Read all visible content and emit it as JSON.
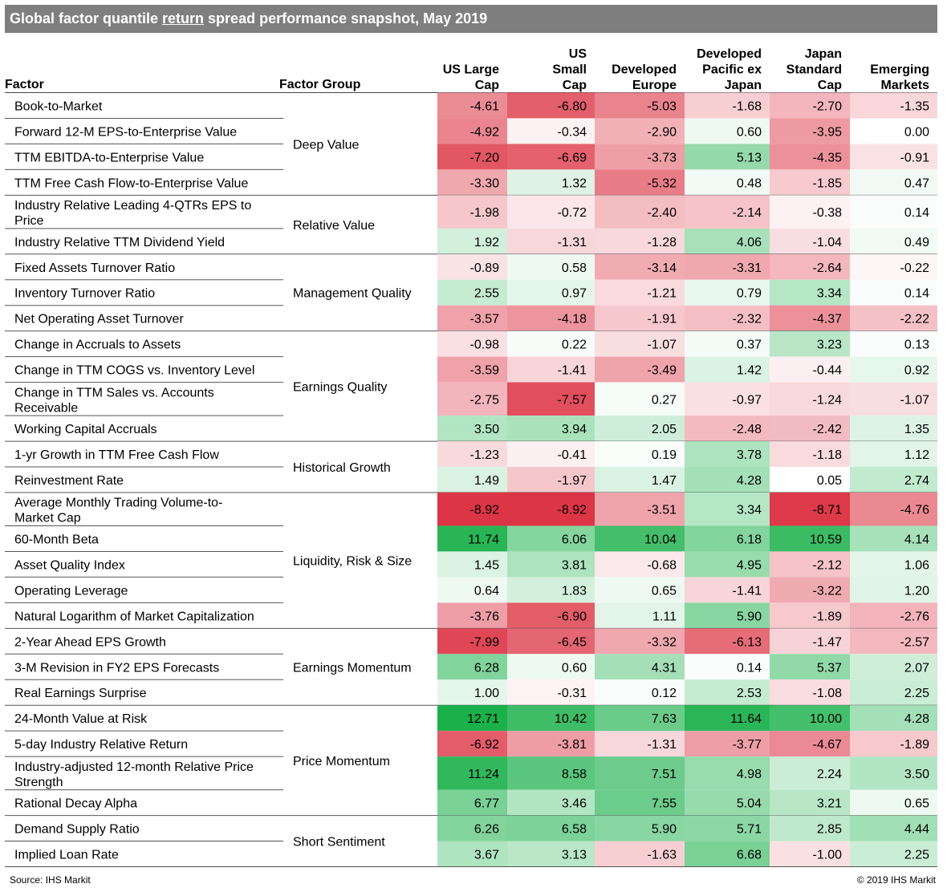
{
  "title": {
    "pre": "Global factor quantile ",
    "underlined": "return",
    "post": " spread performance snapshot, May 2019"
  },
  "source": "Source: IHS Markit",
  "copyright": "© 2019 IHS Markit",
  "colors": {
    "title_bg": "#7f7f7f",
    "negative_max": "#dc3545",
    "positive_max": "#1ab04a",
    "neutral": "#ffffff"
  },
  "chart_data": {
    "type": "heatmap",
    "title": "Global factor quantile return spread performance snapshot, May 2019",
    "header": {
      "factor": "Factor",
      "group": "Factor Group"
    },
    "columns": [
      {
        "lines": [
          "US Large",
          "Cap"
        ]
      },
      {
        "lines": [
          "US",
          "Small",
          "Cap"
        ]
      },
      {
        "lines": [
          "Developed",
          "Europe"
        ]
      },
      {
        "lines": [
          "Developed",
          "Pacific ex",
          "Japan"
        ]
      },
      {
        "lines": [
          "Japan",
          "Standard",
          "Cap"
        ]
      },
      {
        "lines": [
          "Emerging",
          "Markets"
        ]
      }
    ],
    "groups": [
      {
        "name": "Deep Value",
        "rows": [
          {
            "factor": [
              "Book-to-Market"
            ],
            "values": [
              -4.61,
              -6.8,
              -5.03,
              -1.68,
              -2.7,
              -1.35
            ]
          },
          {
            "factor": [
              "Forward 12-M EPS-to-Enterprise Value"
            ],
            "values": [
              -4.92,
              -0.34,
              -2.9,
              0.6,
              -3.95,
              0.0
            ]
          },
          {
            "factor": [
              "TTM EBITDA-to-Enterprise Value"
            ],
            "values": [
              -7.2,
              -6.69,
              -3.73,
              5.13,
              -4.35,
              -0.91
            ]
          },
          {
            "factor": [
              "TTM Free Cash Flow-to-Enterprise Value"
            ],
            "values": [
              -3.3,
              1.32,
              -5.32,
              0.48,
              -1.85,
              0.47
            ]
          }
        ]
      },
      {
        "name": "Relative Value",
        "rows": [
          {
            "factor": [
              "Industry Relative Leading 4-QTRs EPS to",
              "Price"
            ],
            "values": [
              -1.98,
              -0.72,
              -2.4,
              -2.14,
              -0.38,
              0.14
            ]
          },
          {
            "factor": [
              "Industry Relative TTM Dividend Yield"
            ],
            "values": [
              1.92,
              -1.31,
              -1.28,
              4.06,
              -1.04,
              0.49
            ]
          }
        ]
      },
      {
        "name": "Management Quality",
        "rows": [
          {
            "factor": [
              "Fixed Assets Turnover Ratio"
            ],
            "values": [
              -0.89,
              0.58,
              -3.14,
              -3.31,
              -2.64,
              -0.22
            ]
          },
          {
            "factor": [
              "Inventory Turnover Ratio"
            ],
            "values": [
              2.55,
              0.97,
              -1.21,
              0.79,
              3.34,
              0.14
            ]
          },
          {
            "factor": [
              "Net Operating Asset Turnover"
            ],
            "values": [
              -3.57,
              -4.18,
              -1.91,
              -2.32,
              -4.37,
              -2.22
            ]
          }
        ]
      },
      {
        "name": "Earnings Quality",
        "rows": [
          {
            "factor": [
              "Change in Accruals to Assets"
            ],
            "values": [
              -0.98,
              0.22,
              -1.07,
              0.37,
              3.23,
              0.13
            ]
          },
          {
            "factor": [
              "Change in TTM COGS vs. Inventory Level"
            ],
            "values": [
              -3.59,
              -1.41,
              -3.49,
              1.42,
              -0.44,
              0.92
            ]
          },
          {
            "factor": [
              "Change in TTM Sales vs. Accounts",
              "Receivable"
            ],
            "values": [
              -2.75,
              -7.57,
              0.27,
              -0.97,
              -1.24,
              -1.07
            ]
          },
          {
            "factor": [
              "Working Capital Accruals"
            ],
            "values": [
              3.5,
              3.94,
              2.05,
              -2.48,
              -2.42,
              1.35
            ]
          }
        ]
      },
      {
        "name": "Historical Growth",
        "rows": [
          {
            "factor": [
              "1-yr Growth in TTM Free Cash Flow"
            ],
            "values": [
              -1.23,
              -0.41,
              0.19,
              3.78,
              -1.18,
              1.12
            ]
          },
          {
            "factor": [
              "Reinvestment Rate"
            ],
            "values": [
              1.49,
              -1.97,
              1.47,
              4.28,
              0.05,
              2.74
            ]
          }
        ]
      },
      {
        "name": "Liquidity, Risk & Size",
        "rows": [
          {
            "factor": [
              "Average Monthly Trading Volume-to-",
              "Market Cap"
            ],
            "values": [
              -8.92,
              -8.92,
              -3.51,
              3.34,
              -8.71,
              -4.76
            ]
          },
          {
            "factor": [
              "60-Month Beta"
            ],
            "values": [
              11.74,
              6.06,
              10.04,
              6.18,
              10.59,
              4.14
            ]
          },
          {
            "factor": [
              "Asset Quality Index"
            ],
            "values": [
              1.45,
              3.81,
              -0.68,
              4.95,
              -2.12,
              1.06
            ]
          },
          {
            "factor": [
              "Operating Leverage"
            ],
            "values": [
              0.64,
              1.83,
              0.65,
              -1.41,
              -3.22,
              1.2
            ]
          },
          {
            "factor": [
              "Natural Logarithm of Market Capitalization"
            ],
            "values": [
              -3.76,
              -6.9,
              1.11,
              5.9,
              -1.89,
              -2.76
            ]
          }
        ]
      },
      {
        "name": "Earnings Momentum",
        "rows": [
          {
            "factor": [
              "2-Year Ahead EPS Growth"
            ],
            "values": [
              -7.99,
              -6.45,
              -3.32,
              -6.13,
              -1.47,
              -2.57
            ]
          },
          {
            "factor": [
              "3-M Revision in FY2 EPS Forecasts"
            ],
            "values": [
              6.28,
              0.6,
              4.31,
              0.14,
              5.37,
              2.07
            ]
          },
          {
            "factor": [
              "Real Earnings Surprise"
            ],
            "values": [
              1.0,
              -0.31,
              0.12,
              2.53,
              -1.08,
              2.25
            ]
          }
        ]
      },
      {
        "name": "Price Momentum",
        "rows": [
          {
            "factor": [
              "24-Month Value at Risk"
            ],
            "values": [
              12.71,
              10.42,
              7.63,
              11.64,
              10.0,
              4.28
            ]
          },
          {
            "factor": [
              "5-day Industry Relative Return"
            ],
            "values": [
              -6.92,
              -3.81,
              -1.31,
              -3.77,
              -4.67,
              -1.89
            ]
          },
          {
            "factor": [
              "Industry-adjusted 12-month Relative Price",
              "Strength"
            ],
            "values": [
              11.24,
              8.58,
              7.51,
              4.98,
              2.24,
              3.5
            ]
          },
          {
            "factor": [
              "Rational Decay Alpha"
            ],
            "values": [
              6.77,
              3.46,
              7.55,
              5.04,
              3.21,
              0.65
            ]
          }
        ]
      },
      {
        "name": "Short Sentiment",
        "rows": [
          {
            "factor": [
              "Demand Supply Ratio"
            ],
            "values": [
              6.26,
              6.58,
              5.9,
              5.71,
              2.85,
              4.44
            ]
          },
          {
            "factor": [
              "Implied Loan Rate"
            ],
            "values": [
              3.67,
              3.13,
              -1.63,
              6.68,
              -1.0,
              2.25
            ]
          }
        ]
      }
    ]
  }
}
